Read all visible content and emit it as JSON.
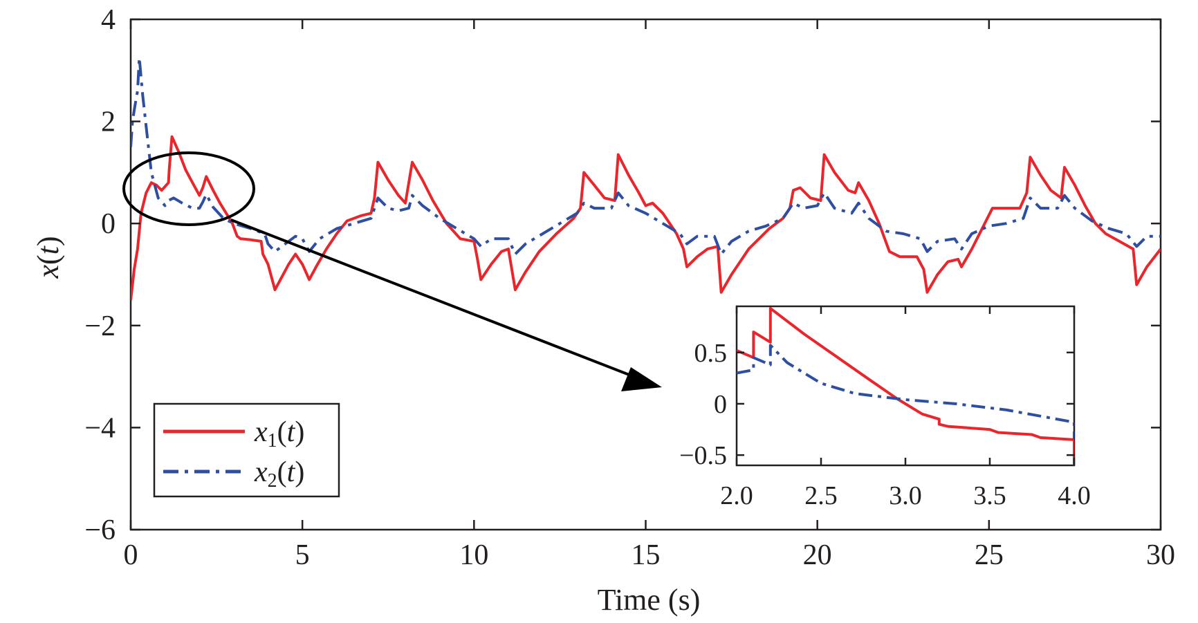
{
  "colors": {
    "x1": "#e8262b",
    "x2": "#2e4ea2",
    "axis": "#231f20",
    "annotation": "#000000"
  },
  "chart_data": [
    {
      "type": "line",
      "role": "main",
      "xlabel": "Time (s)",
      "ylabel_base": "x",
      "ylabel_arg": "t",
      "xlim": [
        0,
        30
      ],
      "ylim": [
        -6,
        4
      ],
      "xticks": [
        0,
        5,
        10,
        15,
        20,
        25,
        30
      ],
      "yticks": [
        -6,
        -4,
        -2,
        0,
        2,
        4
      ],
      "xtick_labels": [
        "0",
        "5",
        "10",
        "15",
        "20",
        "25",
        "30"
      ],
      "ytick_labels": [
        "−6",
        "−4",
        "−2",
        "0",
        "2",
        "4"
      ],
      "grid": false,
      "legend_position": "bottom-left",
      "series": [
        {
          "name": "x1(t)",
          "name_base": "x",
          "name_sub": "1",
          "name_arg": "t",
          "color": "#e8262b",
          "style": "solid",
          "points": [
            [
              0,
              -1.5
            ],
            [
              0.1,
              -0.9
            ],
            [
              0.2,
              -0.5
            ],
            [
              0.3,
              0.2
            ],
            [
              0.45,
              0.6
            ],
            [
              0.6,
              0.8
            ],
            [
              0.75,
              0.75
            ],
            [
              0.9,
              0.65
            ],
            [
              1.1,
              0.8
            ],
            [
              1.12,
              1.05
            ],
            [
              1.2,
              1.7
            ],
            [
              1.4,
              1.4
            ],
            [
              1.6,
              1.05
            ],
            [
              1.8,
              0.8
            ],
            [
              2.0,
              0.55
            ],
            [
              2.1,
              0.7
            ],
            [
              2.2,
              0.92
            ],
            [
              2.4,
              0.65
            ],
            [
              2.6,
              0.4
            ],
            [
              2.8,
              0.18
            ],
            [
              2.95,
              0.02
            ],
            [
              3.1,
              -0.25
            ],
            [
              3.2,
              -0.3
            ],
            [
              3.5,
              -0.32
            ],
            [
              3.8,
              -0.35
            ],
            [
              3.85,
              -0.6
            ],
            [
              4.0,
              -0.8
            ],
            [
              4.2,
              -1.3
            ],
            [
              4.4,
              -1.05
            ],
            [
              4.6,
              -0.8
            ],
            [
              4.8,
              -0.6
            ],
            [
              4.85,
              -0.65
            ],
            [
              5.0,
              -0.8
            ],
            [
              5.2,
              -1.1
            ],
            [
              5.4,
              -0.85
            ],
            [
              5.7,
              -0.5
            ],
            [
              6.0,
              -0.2
            ],
            [
              6.3,
              0.05
            ],
            [
              6.7,
              0.15
            ],
            [
              7.0,
              0.2
            ],
            [
              7.1,
              0.5
            ],
            [
              7.2,
              1.2
            ],
            [
              7.5,
              0.85
            ],
            [
              7.8,
              0.55
            ],
            [
              8.0,
              0.4
            ],
            [
              8.2,
              1.2
            ],
            [
              8.5,
              0.85
            ],
            [
              8.8,
              0.45
            ],
            [
              9.2,
              0.0
            ],
            [
              9.6,
              -0.3
            ],
            [
              10.0,
              -0.35
            ],
            [
              10.1,
              -0.7
            ],
            [
              10.2,
              -1.1
            ],
            [
              10.5,
              -0.8
            ],
            [
              10.8,
              -0.55
            ],
            [
              11.0,
              -0.5
            ],
            [
              11.2,
              -1.3
            ],
            [
              11.5,
              -0.95
            ],
            [
              11.9,
              -0.55
            ],
            [
              12.4,
              -0.2
            ],
            [
              12.9,
              0.1
            ],
            [
              13.1,
              0.3
            ],
            [
              13.2,
              1.0
            ],
            [
              13.5,
              0.75
            ],
            [
              13.8,
              0.5
            ],
            [
              14.1,
              0.45
            ],
            [
              14.2,
              1.35
            ],
            [
              14.5,
              0.95
            ],
            [
              14.8,
              0.6
            ],
            [
              15.0,
              0.35
            ],
            [
              15.2,
              0.4
            ],
            [
              15.5,
              0.2
            ],
            [
              15.9,
              -0.2
            ],
            [
              16.1,
              -0.5
            ],
            [
              16.2,
              -0.85
            ],
            [
              16.5,
              -0.65
            ],
            [
              16.8,
              -0.5
            ],
            [
              17.1,
              -0.45
            ],
            [
              17.2,
              -1.35
            ],
            [
              17.5,
              -1.0
            ],
            [
              17.8,
              -0.7
            ],
            [
              18.0,
              -0.5
            ],
            [
              18.3,
              -0.3
            ],
            [
              18.6,
              -0.1
            ],
            [
              19.0,
              0.1
            ],
            [
              19.2,
              0.3
            ],
            [
              19.3,
              0.65
            ],
            [
              19.5,
              0.7
            ],
            [
              19.8,
              0.5
            ],
            [
              20.1,
              0.45
            ],
            [
              20.2,
              1.35
            ],
            [
              20.5,
              1.0
            ],
            [
              20.9,
              0.65
            ],
            [
              21.1,
              0.6
            ],
            [
              21.2,
              0.8
            ],
            [
              21.5,
              0.45
            ],
            [
              21.8,
              0.0
            ],
            [
              22.1,
              -0.55
            ],
            [
              22.4,
              -0.65
            ],
            [
              22.9,
              -0.65
            ],
            [
              23.1,
              -0.9
            ],
            [
              23.2,
              -1.35
            ],
            [
              23.5,
              -1.0
            ],
            [
              23.8,
              -0.75
            ],
            [
              24.1,
              -0.7
            ],
            [
              24.2,
              -0.85
            ],
            [
              24.5,
              -0.5
            ],
            [
              24.8,
              -0.1
            ],
            [
              25.1,
              0.3
            ],
            [
              25.5,
              0.3
            ],
            [
              25.9,
              0.3
            ],
            [
              26.1,
              0.6
            ],
            [
              26.2,
              1.3
            ],
            [
              26.5,
              0.95
            ],
            [
              26.8,
              0.65
            ],
            [
              27.1,
              0.5
            ],
            [
              27.2,
              1.1
            ],
            [
              27.5,
              0.75
            ],
            [
              27.8,
              0.35
            ],
            [
              28.1,
              0.0
            ],
            [
              28.4,
              -0.2
            ],
            [
              28.8,
              -0.35
            ],
            [
              29.2,
              -0.5
            ],
            [
              29.3,
              -1.2
            ],
            [
              29.6,
              -0.85
            ],
            [
              30.0,
              -0.5
            ]
          ]
        },
        {
          "name": "x2(t)",
          "name_base": "x",
          "name_sub": "2",
          "name_arg": "t",
          "color": "#2e4ea2",
          "style": "dashdot",
          "points": [
            [
              0,
              1.5
            ],
            [
              0.05,
              2.0
            ],
            [
              0.12,
              2.3
            ],
            [
              0.2,
              2.6
            ],
            [
              0.25,
              3.25
            ],
            [
              0.35,
              2.5
            ],
            [
              0.45,
              1.9
            ],
            [
              0.6,
              1.0
            ],
            [
              0.8,
              0.5
            ],
            [
              1.0,
              0.35
            ],
            [
              1.1,
              0.45
            ],
            [
              1.25,
              0.5
            ],
            [
              1.5,
              0.4
            ],
            [
              1.8,
              0.3
            ],
            [
              2.0,
              0.3
            ],
            [
              2.1,
              0.42
            ],
            [
              2.2,
              0.57
            ],
            [
              2.4,
              0.32
            ],
            [
              2.7,
              0.1
            ],
            [
              3.0,
              0.0
            ],
            [
              3.5,
              -0.1
            ],
            [
              3.9,
              -0.2
            ],
            [
              4.0,
              -0.4
            ],
            [
              4.2,
              -0.55
            ],
            [
              4.5,
              -0.4
            ],
            [
              4.8,
              -0.25
            ],
            [
              5.0,
              -0.3
            ],
            [
              5.2,
              -0.55
            ],
            [
              5.5,
              -0.3
            ],
            [
              6.0,
              -0.1
            ],
            [
              6.5,
              0.0
            ],
            [
              7.0,
              0.1
            ],
            [
              7.2,
              0.5
            ],
            [
              7.5,
              0.3
            ],
            [
              7.8,
              0.25
            ],
            [
              8.1,
              0.3
            ],
            [
              8.2,
              0.55
            ],
            [
              8.5,
              0.35
            ],
            [
              9.0,
              0.1
            ],
            [
              9.5,
              -0.1
            ],
            [
              10.0,
              -0.3
            ],
            [
              10.2,
              -0.45
            ],
            [
              10.5,
              -0.3
            ],
            [
              11.0,
              -0.3
            ],
            [
              11.2,
              -0.6
            ],
            [
              11.5,
              -0.4
            ],
            [
              12.0,
              -0.2
            ],
            [
              12.5,
              0.0
            ],
            [
              13.0,
              0.2
            ],
            [
              13.2,
              0.4
            ],
            [
              13.5,
              0.3
            ],
            [
              14.0,
              0.3
            ],
            [
              14.2,
              0.6
            ],
            [
              14.5,
              0.35
            ],
            [
              15.0,
              0.2
            ],
            [
              15.5,
              0.0
            ],
            [
              16.0,
              -0.2
            ],
            [
              16.2,
              -0.4
            ],
            [
              16.5,
              -0.25
            ],
            [
              17.0,
              -0.25
            ],
            [
              17.2,
              -0.6
            ],
            [
              17.5,
              -0.35
            ],
            [
              18.0,
              -0.15
            ],
            [
              18.5,
              -0.05
            ],
            [
              19.0,
              0.1
            ],
            [
              19.3,
              0.4
            ],
            [
              19.6,
              0.3
            ],
            [
              20.0,
              0.35
            ],
            [
              20.2,
              0.6
            ],
            [
              20.5,
              0.3
            ],
            [
              21.0,
              0.2
            ],
            [
              21.2,
              0.4
            ],
            [
              21.5,
              0.1
            ],
            [
              22.0,
              -0.15
            ],
            [
              22.5,
              -0.2
            ],
            [
              23.0,
              -0.3
            ],
            [
              23.2,
              -0.55
            ],
            [
              23.5,
              -0.35
            ],
            [
              24.0,
              -0.3
            ],
            [
              24.2,
              -0.5
            ],
            [
              24.5,
              -0.2
            ],
            [
              25.0,
              -0.05
            ],
            [
              25.5,
              0.0
            ],
            [
              26.0,
              0.1
            ],
            [
              26.2,
              0.5
            ],
            [
              26.5,
              0.3
            ],
            [
              27.0,
              0.3
            ],
            [
              27.2,
              0.55
            ],
            [
              27.5,
              0.3
            ],
            [
              28.0,
              0.05
            ],
            [
              28.5,
              -0.1
            ],
            [
              29.0,
              -0.2
            ],
            [
              29.3,
              -0.45
            ],
            [
              29.6,
              -0.25
            ],
            [
              30.0,
              -0.25
            ]
          ]
        }
      ]
    },
    {
      "type": "line",
      "role": "inset",
      "xlim": [
        2.0,
        4.0
      ],
      "ylim": [
        -0.6,
        0.95
      ],
      "xticks": [
        2.0,
        2.5,
        3.0,
        3.5,
        4.0
      ],
      "yticks": [
        -0.5,
        0,
        0.5
      ],
      "xtick_labels": [
        "2.0",
        "2.5",
        "3.0",
        "3.5",
        "4.0"
      ],
      "ytick_labels": [
        "−0.5",
        "0",
        "0.5"
      ],
      "grid": false,
      "series": [
        {
          "color": "#e8262b",
          "style": "solid",
          "points": [
            [
              2.0,
              0.52
            ],
            [
              2.1,
              0.45
            ],
            [
              2.1,
              0.7
            ],
            [
              2.2,
              0.6
            ],
            [
              2.2,
              0.93
            ],
            [
              2.4,
              0.68
            ],
            [
              2.6,
              0.45
            ],
            [
              2.8,
              0.22
            ],
            [
              2.95,
              0.05
            ],
            [
              3.05,
              -0.05
            ],
            [
              3.1,
              -0.1
            ],
            [
              3.2,
              -0.15
            ],
            [
              3.2,
              -0.2
            ],
            [
              3.25,
              -0.22
            ],
            [
              3.5,
              -0.25
            ],
            [
              3.55,
              -0.28
            ],
            [
              3.75,
              -0.3
            ],
            [
              3.8,
              -0.33
            ],
            [
              4.0,
              -0.35
            ],
            [
              4.0,
              -0.6
            ]
          ]
        },
        {
          "color": "#2e4ea2",
          "style": "dashdot",
          "points": [
            [
              2.0,
              0.3
            ],
            [
              2.1,
              0.33
            ],
            [
              2.1,
              0.45
            ],
            [
              2.2,
              0.38
            ],
            [
              2.2,
              0.57
            ],
            [
              2.3,
              0.4
            ],
            [
              2.5,
              0.2
            ],
            [
              2.7,
              0.1
            ],
            [
              2.9,
              0.06
            ],
            [
              3.0,
              0.04
            ],
            [
              3.3,
              0.0
            ],
            [
              3.6,
              -0.06
            ],
            [
              4.0,
              -0.18
            ],
            [
              4.0,
              -0.35
            ]
          ]
        }
      ]
    }
  ]
}
